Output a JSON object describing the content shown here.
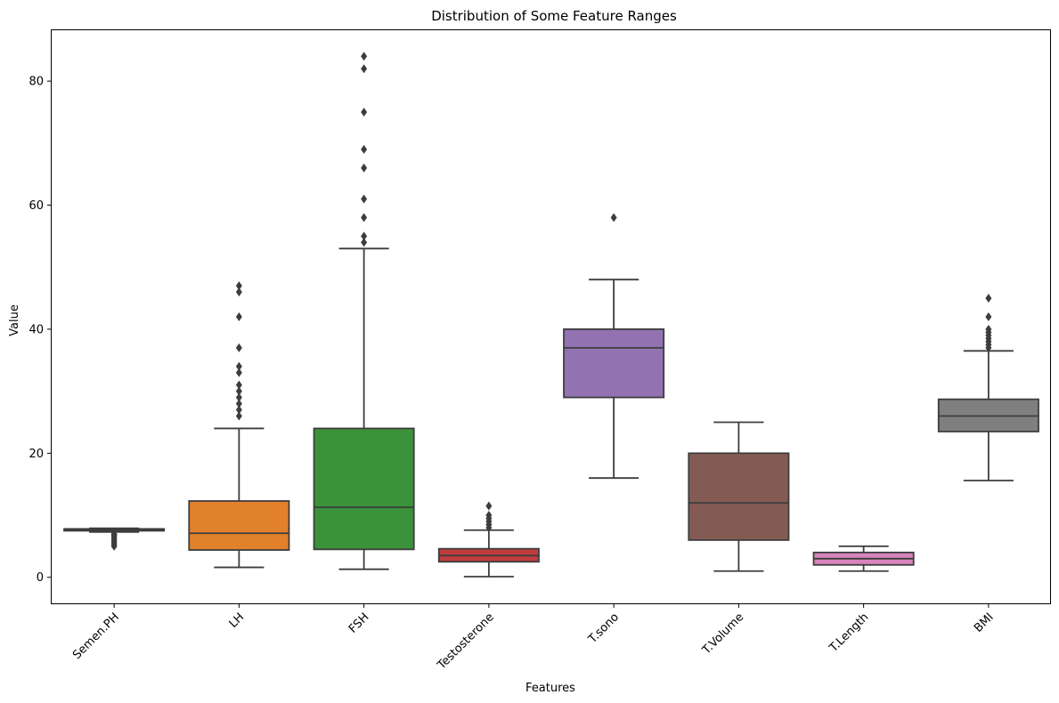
{
  "chart_data": {
    "type": "box",
    "title": "Distribution of Some Feature Ranges",
    "xlabel": "Features",
    "ylabel": "Value",
    "ylim": [
      -4.2,
      88.2
    ],
    "yticks": [
      0,
      20,
      40,
      60,
      80
    ],
    "grid": false,
    "categories": [
      "Semen.PH",
      "LH",
      "FSH",
      "Testosterone",
      "T.sono",
      "T.Volume",
      "T.Length",
      "BMI"
    ],
    "colors": [
      "#3274a1",
      "#e1812c",
      "#3a923a",
      "#c03d3e",
      "#9372b2",
      "#845b53",
      "#d684bd",
      "#7f7f7f"
    ],
    "line_color": "#3d3d3d",
    "boxes": [
      {
        "name": "Semen.PH",
        "whislo": 7.3,
        "q1": 7.5,
        "med": 7.6,
        "q3": 7.8,
        "whishi": 7.9,
        "fliers": [
          5.0,
          5.3,
          5.6,
          5.9,
          6.2,
          6.5,
          6.8,
          7.0
        ]
      },
      {
        "name": "LH",
        "whislo": 1.6,
        "q1": 4.4,
        "med": 7.1,
        "q3": 12.3,
        "whishi": 24.0,
        "fliers": [
          26.0,
          27.0,
          28.0,
          29.0,
          30.0,
          31.0,
          33.0,
          34.0,
          37.0,
          42.0,
          46.0,
          47.0
        ]
      },
      {
        "name": "FSH",
        "whislo": 1.3,
        "q1": 4.5,
        "med": 11.3,
        "q3": 24.0,
        "whishi": 53.0,
        "fliers": [
          54.0,
          55.0,
          58.0,
          61.0,
          66.0,
          69.0,
          75.0,
          82.0,
          84.0
        ]
      },
      {
        "name": "Testosterone",
        "whislo": 0.1,
        "q1": 2.5,
        "med": 3.5,
        "q3": 4.6,
        "whishi": 7.6,
        "fliers": [
          8.0,
          8.5,
          9.0,
          9.5,
          10.0,
          11.5
        ]
      },
      {
        "name": "T.sono",
        "whislo": 16.0,
        "q1": 29.0,
        "med": 37.0,
        "q3": 40.0,
        "whishi": 48.0,
        "fliers": [
          58.0
        ]
      },
      {
        "name": "T.Volume",
        "whislo": 1.0,
        "q1": 6.0,
        "med": 12.0,
        "q3": 20.0,
        "whishi": 25.0,
        "fliers": []
      },
      {
        "name": "T.Length",
        "whislo": 1.0,
        "q1": 2.0,
        "med": 3.0,
        "q3": 4.0,
        "whishi": 5.0,
        "fliers": []
      },
      {
        "name": "BMI",
        "whislo": 15.6,
        "q1": 23.5,
        "med": 26.0,
        "q3": 28.7,
        "whishi": 36.5,
        "fliers": [
          37.0,
          37.5,
          38.0,
          38.5,
          39.0,
          39.5,
          40.0,
          42.0,
          45.0
        ]
      }
    ]
  }
}
